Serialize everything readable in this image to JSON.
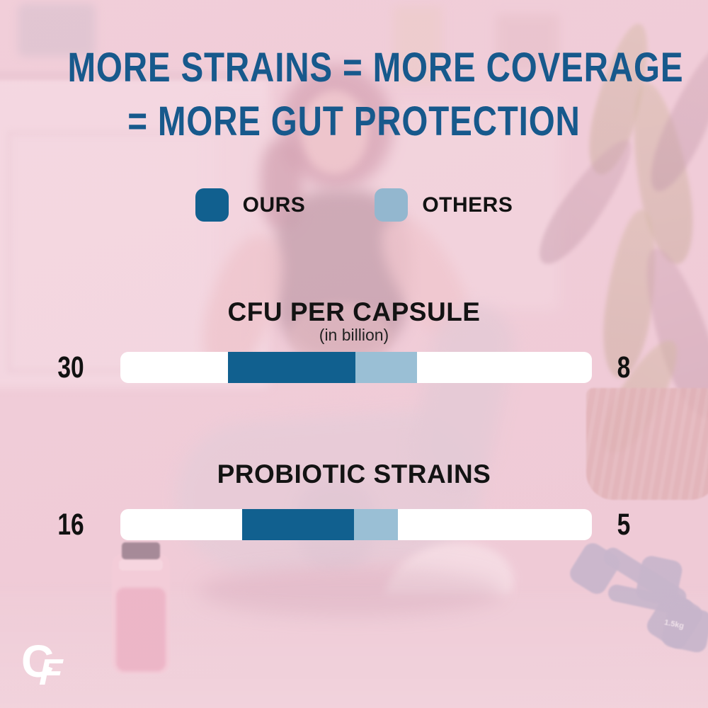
{
  "title": {
    "line1": "MORE STRAINS = MORE COVERAGE",
    "line2": "=  MORE GUT PROTECTION"
  },
  "legend": {
    "ours": "OURS",
    "others": "OTHERS"
  },
  "sections": [
    {
      "heading": "CFU PER CAPSULE",
      "subheading": "(in billion)",
      "ours_value": "30",
      "others_value": "8"
    },
    {
      "heading": "PROBIOTIC STRAINS",
      "ours_value": "16",
      "others_value": "5"
    }
  ],
  "logo": {
    "letter_c": "C",
    "letter_f": "F"
  },
  "background": {
    "dumbbell_label": "1.5kg"
  },
  "colors": {
    "brand_dark_blue": "#11608f",
    "brand_light_blue": "#9abfd5",
    "title_blue": "#17598c",
    "background_pink": "#eecbd6",
    "bar_track_white": "#ffffff",
    "text_black": "#121212"
  },
  "chart_data": [
    {
      "type": "bar",
      "orientation": "horizontal",
      "title": "CFU PER CAPSULE",
      "subtitle": "(in billion)",
      "categories": [
        "OURS",
        "OTHERS"
      ],
      "values": [
        30,
        8
      ],
      "legend_position": "top-center",
      "series_colors": {
        "OURS": "#11608f",
        "OTHERS": "#9abfd5"
      }
    },
    {
      "type": "bar",
      "orientation": "horizontal",
      "title": "PROBIOTIC STRAINS",
      "categories": [
        "OURS",
        "OTHERS"
      ],
      "values": [
        16,
        5
      ],
      "legend_position": "top-center",
      "series_colors": {
        "OURS": "#11608f",
        "OTHERS": "#9abfd5"
      }
    }
  ]
}
